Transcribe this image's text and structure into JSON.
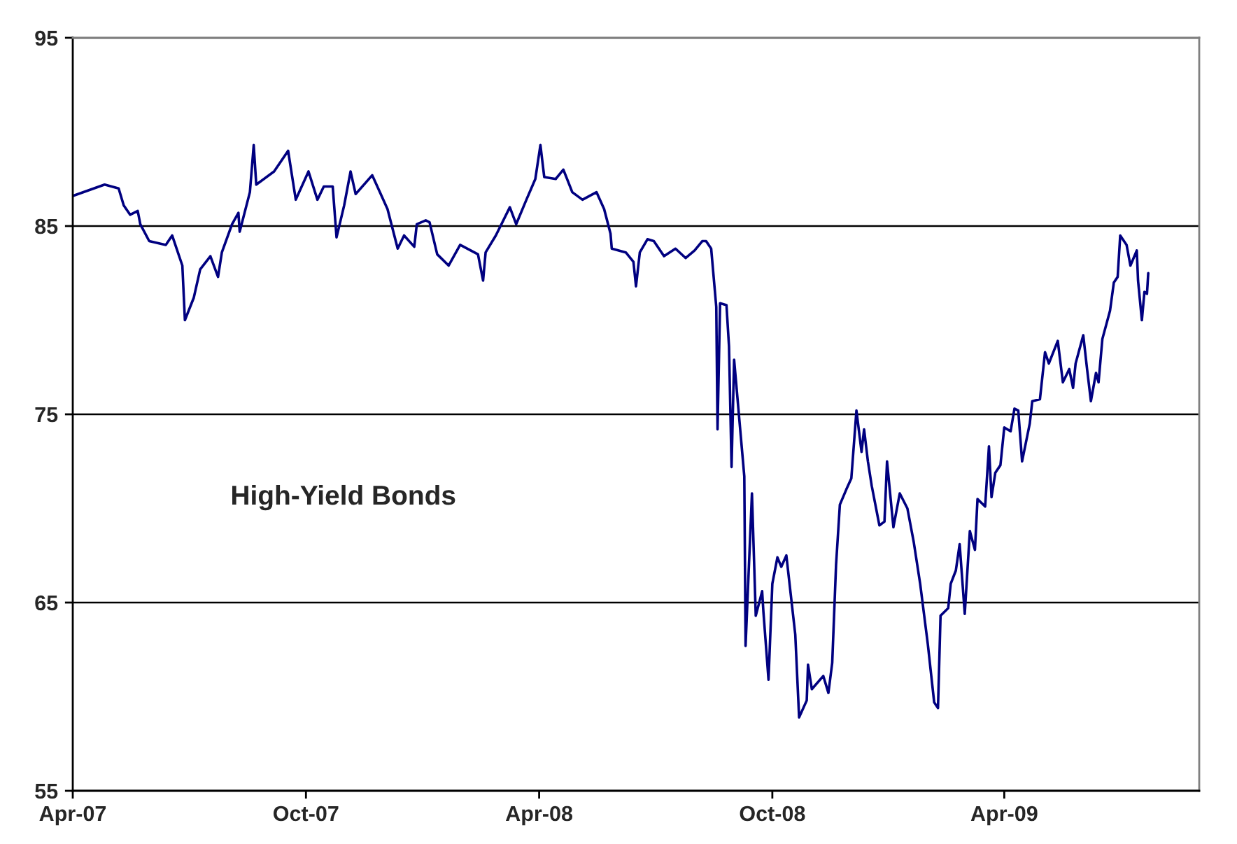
{
  "chart_data": {
    "type": "line",
    "x": [
      "2007-04-01",
      "2007-04-26",
      "2007-05-07",
      "2007-05-11",
      "2007-05-16",
      "2007-05-22",
      "2007-05-24",
      "2007-05-31",
      "2007-06-13",
      "2007-06-18",
      "2007-06-26",
      "2007-06-28",
      "2007-07-05",
      "2007-07-10",
      "2007-07-18",
      "2007-07-24",
      "2007-07-27",
      "2007-08-04",
      "2007-08-09",
      "2007-08-10",
      "2007-08-18",
      "2007-08-21",
      "2007-08-23",
      "2007-09-06",
      "2007-09-17",
      "2007-09-23",
      "2007-10-03",
      "2007-10-10",
      "2007-10-15",
      "2007-10-22",
      "2007-10-25",
      "2007-10-31",
      "2007-11-05",
      "2007-11-09",
      "2007-11-22",
      "2007-11-28",
      "2007-12-04",
      "2007-12-12",
      "2007-12-17",
      "2007-12-25",
      "2007-12-27",
      "2008-01-03",
      "2008-01-06",
      "2008-01-12",
      "2008-01-21",
      "2008-01-30",
      "2008-02-13",
      "2008-02-17",
      "2008-02-19",
      "2008-02-27",
      "2008-03-09",
      "2008-03-14",
      "2008-03-22",
      "2008-03-29",
      "2008-04-02",
      "2008-04-05",
      "2008-04-14",
      "2008-04-20",
      "2008-04-27",
      "2008-05-05",
      "2008-05-16",
      "2008-05-22",
      "2008-05-27",
      "2008-05-28",
      "2008-06-08",
      "2008-06-14",
      "2008-06-16",
      "2008-06-19",
      "2008-06-25",
      "2008-06-30",
      "2008-07-08",
      "2008-07-17",
      "2008-07-25",
      "2008-08-01",
      "2008-08-07",
      "2008-08-10",
      "2008-08-14",
      "2008-08-18",
      "2008-08-19",
      "2008-08-21",
      "2008-08-26",
      "2008-08-28",
      "2008-08-30",
      "2008-09-01",
      "2008-09-09",
      "2008-09-10",
      "2008-09-15",
      "2008-09-18",
      "2008-09-23",
      "2008-09-24",
      "2008-09-28",
      "2008-10-01",
      "2008-10-05",
      "2008-10-08",
      "2008-10-12",
      "2008-10-19",
      "2008-10-22",
      "2008-10-28",
      "2008-10-29",
      "2008-11-01",
      "2008-11-10",
      "2008-11-14",
      "2008-11-17",
      "2008-11-20",
      "2008-11-23",
      "2008-11-28",
      "2008-12-02",
      "2008-12-06",
      "2008-12-10",
      "2008-12-12",
      "2008-12-15",
      "2008-12-18",
      "2008-12-24",
      "2008-12-28",
      "2008-12-30",
      "2009-01-04",
      "2009-01-09",
      "2009-01-15",
      "2009-01-20",
      "2009-01-25",
      "2009-01-31",
      "2009-02-05",
      "2009-02-08",
      "2009-02-10",
      "2009-02-16",
      "2009-02-18",
      "2009-02-22",
      "2009-02-25",
      "2009-03-01",
      "2009-03-05",
      "2009-03-09",
      "2009-03-11",
      "2009-03-17",
      "2009-03-20",
      "2009-03-22",
      "2009-03-25",
      "2009-03-29",
      "2009-04-01",
      "2009-04-06",
      "2009-04-09",
      "2009-04-12",
      "2009-04-15",
      "2009-04-21",
      "2009-04-23",
      "2009-04-29",
      "2009-05-03",
      "2009-05-06",
      "2009-05-13",
      "2009-05-17",
      "2009-05-22",
      "2009-05-25",
      "2009-05-27",
      "2009-06-02",
      "2009-06-05",
      "2009-06-08",
      "2009-06-12",
      "2009-06-14",
      "2009-06-17",
      "2009-06-23",
      "2009-06-26",
      "2009-06-29",
      "2009-07-01",
      "2009-07-06",
      "2009-07-09",
      "2009-07-14",
      "2009-07-15",
      "2009-07-18",
      "2009-07-20",
      "2009-07-22",
      "2009-07-23"
    ],
    "series": [
      {
        "name": "High-Yield Bonds",
        "color": "#000080",
        "values": [
          86.6,
          87.2,
          87.0,
          86.1,
          85.6,
          85.8,
          85.1,
          84.2,
          84.0,
          84.5,
          82.9,
          80.0,
          81.2,
          82.7,
          83.4,
          82.3,
          83.6,
          85.1,
          85.7,
          84.7,
          86.8,
          89.3,
          87.2,
          87.9,
          89.0,
          86.4,
          87.9,
          86.4,
          87.1,
          87.1,
          84.4,
          86.1,
          87.9,
          86.7,
          87.7,
          86.8,
          85.9,
          83.8,
          84.5,
          83.9,
          85.1,
          85.3,
          85.2,
          83.5,
          82.9,
          84.0,
          83.5,
          82.1,
          83.6,
          84.5,
          86.0,
          85.1,
          86.4,
          87.5,
          89.3,
          87.6,
          87.5,
          88.0,
          86.8,
          86.4,
          86.8,
          85.9,
          84.6,
          83.8,
          83.6,
          83.1,
          81.8,
          83.6,
          84.3,
          84.2,
          83.4,
          83.8,
          83.3,
          83.7,
          84.2,
          84.2,
          83.8,
          80.7,
          74.2,
          80.9,
          80.8,
          78.6,
          72.2,
          77.9,
          71.7,
          62.7,
          70.8,
          64.3,
          65.6,
          64.5,
          60.9,
          66.0,
          67.4,
          66.9,
          67.5,
          63.3,
          58.9,
          59.8,
          61.7,
          60.4,
          61.1,
          60.2,
          61.8,
          67.0,
          70.2,
          71.0,
          71.6,
          75.2,
          73.0,
          74.2,
          72.5,
          71.2,
          69.1,
          69.3,
          72.5,
          69.0,
          70.8,
          70.0,
          68.2,
          66.0,
          62.8,
          59.7,
          59.4,
          64.3,
          64.7,
          66.0,
          66.7,
          68.1,
          64.4,
          68.8,
          67.8,
          70.5,
          70.1,
          73.3,
          70.6,
          71.9,
          72.3,
          74.3,
          74.1,
          75.3,
          75.2,
          72.5,
          74.5,
          75.7,
          75.8,
          78.3,
          77.7,
          78.9,
          76.7,
          77.4,
          76.4,
          77.7,
          79.2,
          77.4,
          75.7,
          77.2,
          76.7,
          79.0,
          80.5,
          82.0,
          82.3,
          84.5,
          84.0,
          82.9,
          83.7,
          82.1,
          80.0,
          81.5,
          81.4,
          82.5
        ]
      }
    ],
    "xlim": [
      "2007-04-01",
      "2009-09-01"
    ],
    "xticks": [
      {
        "value": "2007-04-01",
        "label": "Apr-07"
      },
      {
        "value": "2007-10-01",
        "label": "Oct-07"
      },
      {
        "value": "2008-04-01",
        "label": "Apr-08"
      },
      {
        "value": "2008-10-01",
        "label": "Oct-08"
      },
      {
        "value": "2009-04-01",
        "label": "Apr-09"
      }
    ],
    "ylim": [
      55,
      95
    ],
    "yticks": [
      55,
      65,
      75,
      85,
      95
    ],
    "grid": "y",
    "legend": false,
    "marker": "none",
    "line_style": "solid"
  }
}
